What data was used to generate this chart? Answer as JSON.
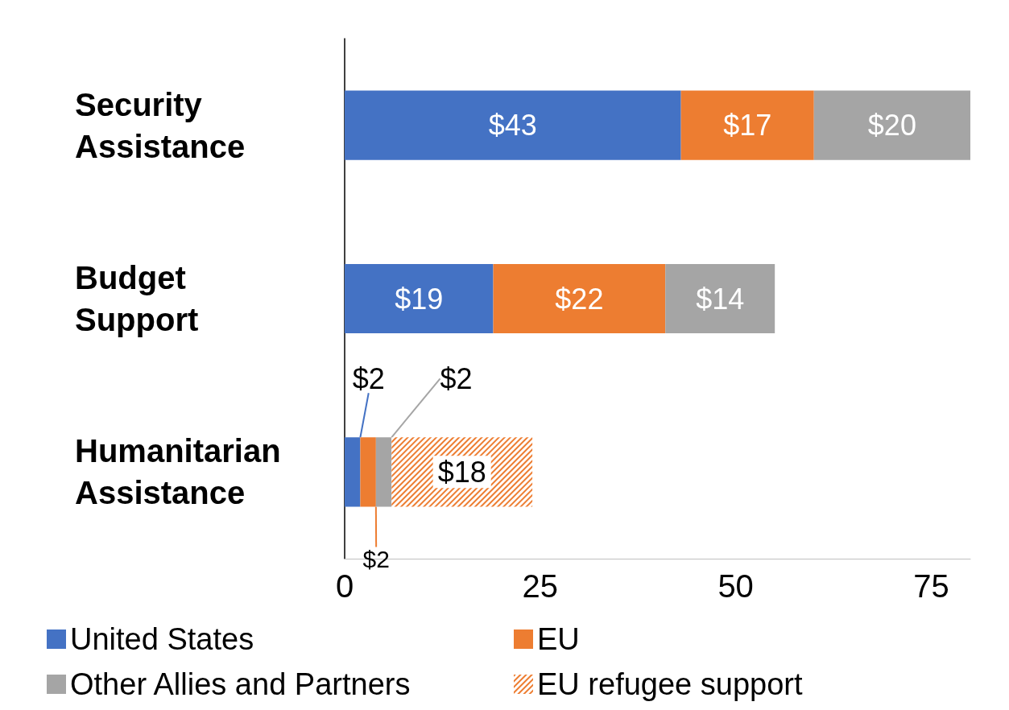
{
  "chart_data": {
    "type": "bar",
    "orientation": "horizontal",
    "stacked": true,
    "categories": [
      "Security\nAssistance",
      "Budget\nSupport",
      "Humanitarian\nAssistance"
    ],
    "series": [
      {
        "name": "United States",
        "color": "#4472c4",
        "values": [
          43,
          19,
          2
        ],
        "value_labels": [
          "$43",
          "$19",
          "$2"
        ]
      },
      {
        "name": "EU",
        "color": "#ed7d31",
        "values": [
          17,
          22,
          2
        ],
        "value_labels": [
          "$17",
          "$22",
          "$2"
        ]
      },
      {
        "name": "Other Allies and Partners",
        "color": "#a5a5a5",
        "values": [
          20,
          14,
          2
        ],
        "value_labels": [
          "$20",
          "$14",
          "$2"
        ]
      },
      {
        "name": "EU refugee support",
        "color": "#ed7d31",
        "values": [
          null,
          null,
          18
        ],
        "value_labels": [
          null,
          null,
          "$18"
        ]
      }
    ],
    "xlim": [
      0,
      80
    ],
    "xticks": [
      0,
      25,
      50,
      75
    ],
    "grid": false,
    "legend": "bottom"
  }
}
